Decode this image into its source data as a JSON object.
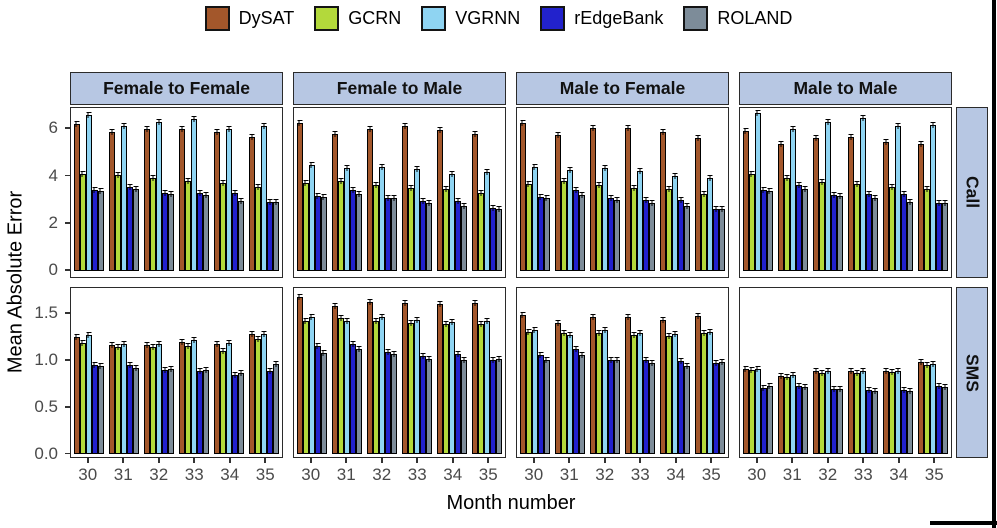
{
  "chart_data": {
    "type": "bar",
    "title": "",
    "xlabel": "Month number",
    "ylabel": "Mean Absolute Error",
    "categories": [
      30,
      31,
      32,
      33,
      34,
      35
    ],
    "series": [
      {
        "name": "DySAT",
        "color": "#A3572B"
      },
      {
        "name": "GCRN",
        "color": "#B3D93B"
      },
      {
        "name": "VGRNN",
        "color": "#8FD4F2"
      },
      {
        "name": "rEdgeBank",
        "color": "#2222CC"
      },
      {
        "name": "ROLAND",
        "color": "#7D8C99"
      }
    ],
    "legend_position": "top",
    "grid": false,
    "error_bars": true,
    "facet_columns": [
      "Female to Female",
      "Female to Male",
      "Male to Female",
      "Male to Male"
    ],
    "facet_rows": [
      {
        "label": "Call",
        "ytick_values": [
          0,
          2,
          4,
          6
        ],
        "ytick_labels": [
          "0",
          "2",
          "4",
          "6"
        ],
        "ylim": [
          0,
          6.9
        ]
      },
      {
        "label": "SMS",
        "ytick_values": [
          0,
          0.5,
          1,
          1.5
        ],
        "ytick_labels": [
          "0.0",
          "0.5",
          "1.0",
          "1.5"
        ],
        "ylim": [
          0,
          1.78
        ]
      }
    ],
    "values": {
      "Call": {
        "Female to Female": {
          "DySAT": [
            6.2,
            5.85,
            6.0,
            6.0,
            5.85,
            5.65
          ],
          "GCRN": [
            4.1,
            4.05,
            3.9,
            3.8,
            3.7,
            3.55
          ],
          "VGRNN": [
            6.6,
            6.1,
            6.3,
            6.4,
            6.0,
            6.1
          ],
          "rEdgeBank": [
            3.4,
            3.55,
            3.3,
            3.3,
            3.3,
            2.9
          ],
          "ROLAND": [
            3.35,
            3.45,
            3.25,
            3.2,
            2.95,
            2.9
          ]
        },
        "Female to Male": {
          "DySAT": [
            6.25,
            5.8,
            6.0,
            6.1,
            5.95,
            5.8
          ],
          "GCRN": [
            3.7,
            3.8,
            3.6,
            3.5,
            3.45,
            3.3
          ],
          "VGRNN": [
            4.45,
            4.35,
            4.4,
            4.3,
            4.1,
            4.15
          ],
          "rEdgeBank": [
            3.15,
            3.4,
            3.05,
            2.95,
            2.95,
            2.65
          ],
          "ROLAND": [
            3.1,
            3.25,
            3.05,
            2.85,
            2.75,
            2.6
          ]
        },
        "Male to Female": {
          "DySAT": [
            6.25,
            5.75,
            6.05,
            6.05,
            5.85,
            5.6
          ],
          "GCRN": [
            3.65,
            3.8,
            3.6,
            3.5,
            3.45,
            3.25
          ],
          "VGRNN": [
            4.4,
            4.25,
            4.35,
            4.2,
            4.0,
            3.9
          ],
          "rEdgeBank": [
            3.1,
            3.4,
            3.05,
            3.0,
            3.0,
            2.6
          ],
          "ROLAND": [
            3.05,
            3.2,
            3.0,
            2.85,
            2.75,
            2.6
          ]
        },
        "Male to Male": {
          "DySAT": [
            5.9,
            5.35,
            5.6,
            5.65,
            5.45,
            5.35
          ],
          "GCRN": [
            4.1,
            3.9,
            3.75,
            3.65,
            3.55,
            3.45
          ],
          "VGRNN": [
            6.65,
            6.0,
            6.3,
            6.45,
            6.1,
            6.15
          ],
          "rEdgeBank": [
            3.4,
            3.6,
            3.2,
            3.25,
            3.25,
            2.85
          ],
          "ROLAND": [
            3.35,
            3.45,
            3.15,
            3.05,
            2.9,
            2.85
          ]
        }
      },
      "SMS": {
        "Female to Female": {
          "DySAT": [
            1.25,
            1.17,
            1.17,
            1.2,
            1.18,
            1.28
          ],
          "GCRN": [
            1.19,
            1.14,
            1.14,
            1.15,
            1.1,
            1.23
          ],
          "VGRNN": [
            1.27,
            1.18,
            1.18,
            1.22,
            1.19,
            1.28
          ],
          "rEdgeBank": [
            0.95,
            0.95,
            0.9,
            0.89,
            0.85,
            0.89
          ],
          "ROLAND": [
            0.94,
            0.92,
            0.91,
            0.9,
            0.87,
            0.96
          ]
        },
        "Female to Male": {
          "DySAT": [
            1.68,
            1.58,
            1.62,
            1.61,
            1.6,
            1.61
          ],
          "GCRN": [
            1.42,
            1.45,
            1.42,
            1.4,
            1.39,
            1.39
          ],
          "VGRNN": [
            1.46,
            1.42,
            1.46,
            1.43,
            1.41,
            1.42
          ],
          "rEdgeBank": [
            1.15,
            1.18,
            1.09,
            1.05,
            1.07,
            1.01
          ],
          "ROLAND": [
            1.08,
            1.12,
            1.07,
            1.02,
            1.01,
            1.02
          ]
        },
        "Male to Female": {
          "DySAT": [
            1.49,
            1.4,
            1.46,
            1.46,
            1.43,
            1.48
          ],
          "GCRN": [
            1.3,
            1.29,
            1.29,
            1.27,
            1.26,
            1.29
          ],
          "VGRNN": [
            1.33,
            1.27,
            1.33,
            1.29,
            1.28,
            1.3
          ],
          "rEdgeBank": [
            1.06,
            1.12,
            1.01,
            1.0,
            0.99,
            0.97
          ],
          "ROLAND": [
            1.01,
            1.06,
            1.01,
            0.97,
            0.94,
            0.98
          ]
        },
        "Male to Male": {
          "DySAT": [
            0.91,
            0.83,
            0.89,
            0.89,
            0.89,
            0.98
          ],
          "GCRN": [
            0.9,
            0.82,
            0.87,
            0.87,
            0.88,
            0.95
          ],
          "VGRNN": [
            0.91,
            0.85,
            0.89,
            0.89,
            0.89,
            0.96
          ],
          "rEdgeBank": [
            0.71,
            0.73,
            0.69,
            0.68,
            0.68,
            0.73
          ],
          "ROLAND": [
            0.73,
            0.72,
            0.7,
            0.67,
            0.67,
            0.72
          ]
        }
      }
    },
    "styles": {
      "strip_fill": "#B7C7E3",
      "axis_text_color": "#4a4a4a",
      "bar_outline": "#000000"
    }
  }
}
